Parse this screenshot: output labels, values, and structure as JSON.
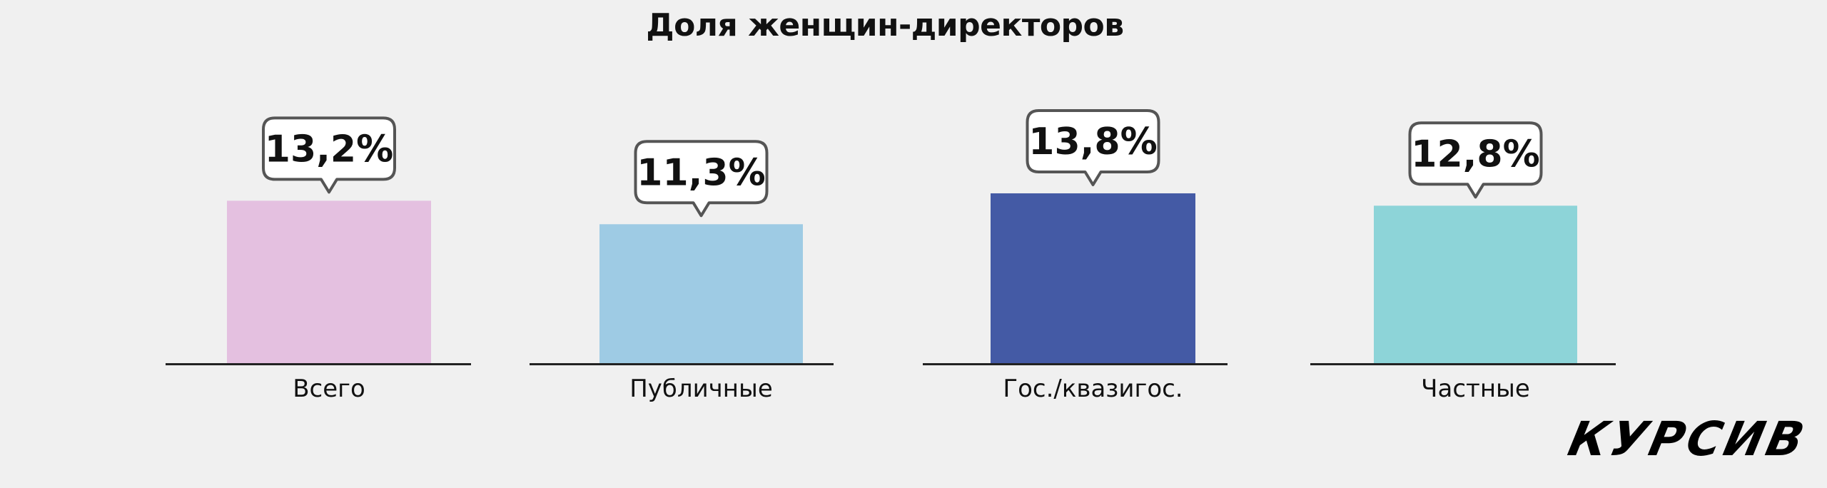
{
  "logo": "КУРСИВ",
  "chart_data": {
    "type": "bar",
    "title": "Доля женщин-директоров",
    "categories": [
      "Всего",
      "Публичные",
      "Гос./квазигос.",
      "Частные"
    ],
    "values": [
      13.2,
      11.3,
      13.8,
      12.8
    ],
    "value_labels": [
      "13,2%",
      "11,3%",
      "13,8%",
      "12,8%"
    ],
    "colors": [
      "#e4c0e0",
      "#9ecbe4",
      "#445aa5",
      "#8dd4d8"
    ],
    "xlabel": "",
    "ylabel": "",
    "grid": false,
    "legend": "none"
  }
}
